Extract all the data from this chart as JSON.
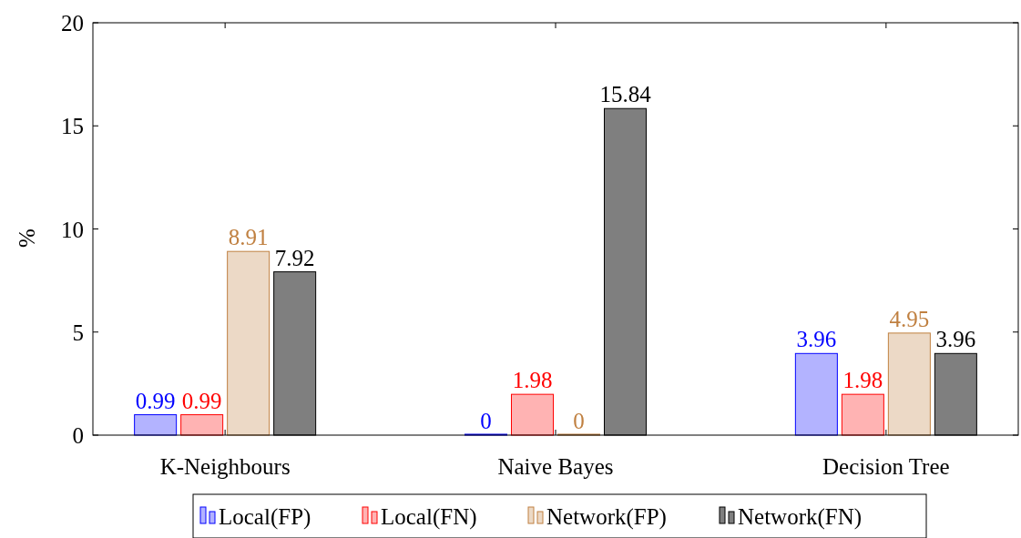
{
  "chart_data": {
    "type": "bar",
    "ylabel": "%",
    "categories": [
      "K-Neighbours",
      "Naive Bayes",
      "Decision Tree"
    ],
    "series": [
      {
        "name": "Local(FP)",
        "color": "#b3b3ff",
        "values": [
          0.99,
          0,
          3.96
        ]
      },
      {
        "name": "Local(FN)",
        "color": "#ffb3b3",
        "values": [
          0.99,
          1.98,
          1.98
        ]
      },
      {
        "name": "Network(FP)",
        "color": "#ecd9c6",
        "values": [
          8.91,
          0,
          4.95
        ]
      },
      {
        "name": "Network(FN)",
        "color": "#7f7f7f",
        "values": [
          7.92,
          15.84,
          3.96
        ]
      }
    ],
    "ylim": [
      0,
      20
    ],
    "yticks": [
      0,
      5,
      10,
      15,
      20
    ],
    "data_labels": true,
    "legend": "bottom"
  }
}
